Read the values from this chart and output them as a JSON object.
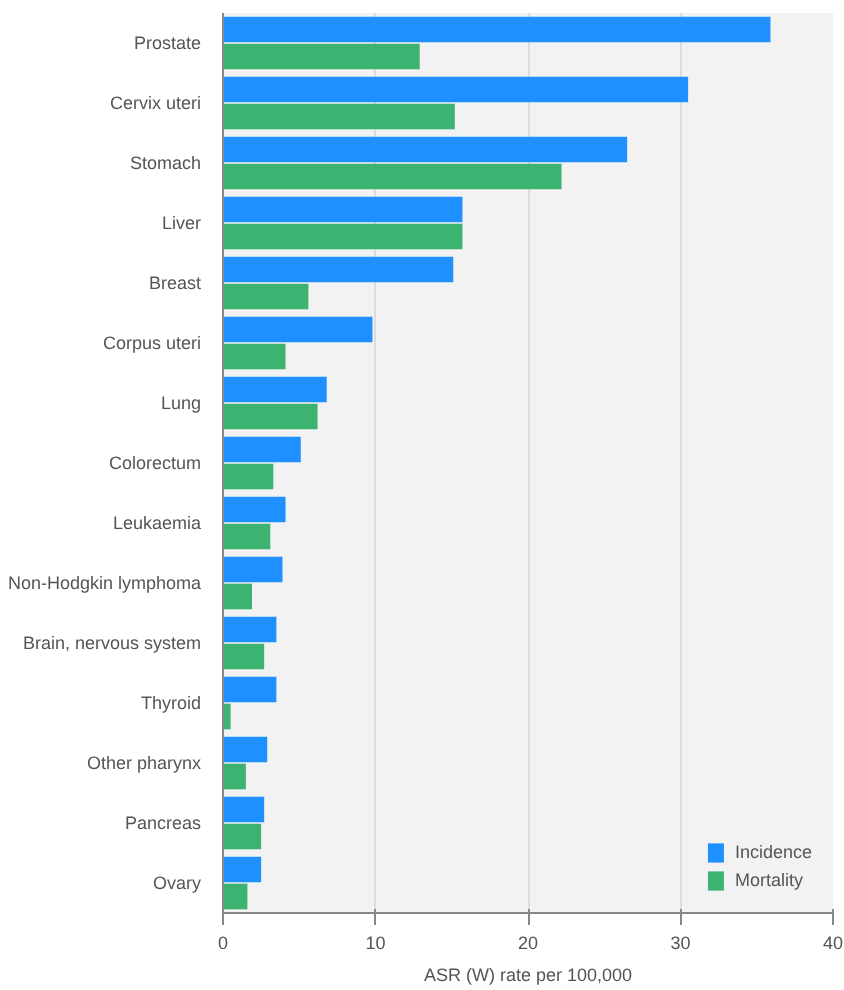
{
  "chart_data": {
    "type": "bar",
    "orientation": "horizontal",
    "categories": [
      "Prostate",
      "Cervix uteri",
      "Stomach",
      "Liver",
      "Breast",
      "Corpus uteri",
      "Lung",
      "Colorectum",
      "Leukaemia",
      "Non-Hodgkin lymphoma",
      "Brain, nervous system",
      "Thyroid",
      "Other pharynx",
      "Pancreas",
      "Ovary"
    ],
    "series": [
      {
        "name": "Incidence",
        "color": "#1e90ff",
        "values": [
          35.9,
          30.5,
          26.5,
          15.7,
          15.1,
          9.8,
          6.8,
          5.1,
          4.1,
          3.9,
          3.5,
          3.5,
          2.9,
          2.7,
          2.5
        ]
      },
      {
        "name": "Mortality",
        "color": "#3cb371",
        "values": [
          12.9,
          15.2,
          22.2,
          15.7,
          5.6,
          4.1,
          6.2,
          3.3,
          3.1,
          1.9,
          2.7,
          0.5,
          1.5,
          2.5,
          1.6
        ]
      }
    ],
    "xlabel": "ASR (W) rate per 100,000",
    "xlim": [
      0,
      40
    ],
    "xticks": [
      0,
      10,
      20,
      30,
      40
    ],
    "grid": "x",
    "legend": "bottom right"
  }
}
